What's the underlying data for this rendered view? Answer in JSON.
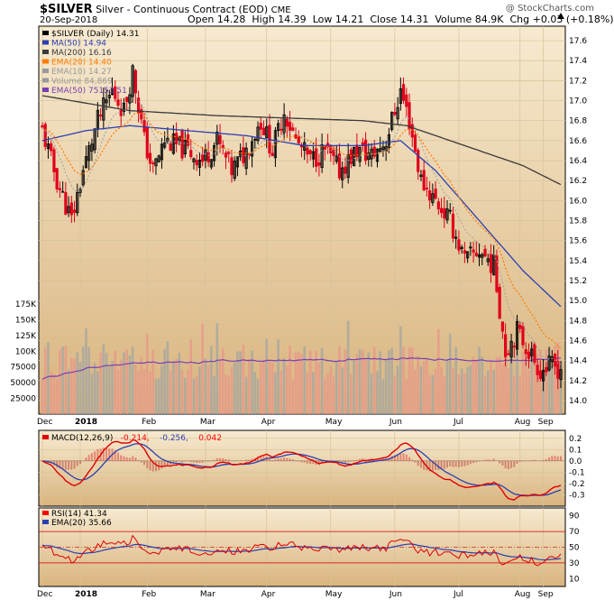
{
  "header": {
    "symbol": "$SILVER",
    "name": "Silver - Continuous Contract (EOD)",
    "exchange": "CME",
    "watermark": "@ StockCharts.com",
    "date": "20-Sep-2018",
    "open_label": "Open",
    "open": "14.28",
    "high_label": "High",
    "high": "14.39",
    "low_label": "Low",
    "low": "14.21",
    "close_label": "Close",
    "close": "14.31",
    "volume_label": "Volume",
    "volume": "84.9K",
    "chg_label": "Chg",
    "chg": "+0.03 (+0.18%)"
  },
  "chart_data": [
    {
      "type": "candlestick",
      "panel": "price",
      "ylim": [
        13.9,
        17.7
      ],
      "ytick_labels": [
        "14.0",
        "14.2",
        "14.4",
        "14.6",
        "14.8",
        "15.0",
        "15.2",
        "15.4",
        "15.6",
        "15.8",
        "16.0",
        "16.2",
        "16.4",
        "16.6",
        "16.8",
        "17.0",
        "17.2",
        "17.4",
        "17.6"
      ],
      "x_labels": [
        "Dec",
        "2018",
        "Feb",
        "Mar",
        "Apr",
        "May",
        "Jun",
        "Jul",
        "Aug",
        "Sep"
      ],
      "legend": [
        {
          "label": "$SILVER (Daily) 14.31",
          "color": "#000000"
        },
        {
          "label": "MA(50) 14.94",
          "color": "#2b3fb0"
        },
        {
          "label": "MA(200) 16.16",
          "color": "#3a3a3a"
        },
        {
          "label": "EMA(20) 14.40",
          "color": "#ff7a00"
        },
        {
          "label": "EMA(10) 14.27",
          "color": "#999999"
        },
        {
          "label": "Volume 84,869",
          "color": "#999999"
        },
        {
          "label": "EMA(50) 75153.51",
          "color": "#7a3fb0"
        }
      ],
      "series_keypoints": {
        "close_anchors": [
          [
            0,
            16.7
          ],
          [
            5,
            16.2
          ],
          [
            10,
            15.8
          ],
          [
            14,
            16.3
          ],
          [
            19,
            16.8
          ],
          [
            24,
            17.1
          ],
          [
            28,
            16.9
          ],
          [
            31,
            17.3
          ],
          [
            35,
            16.6
          ],
          [
            38,
            16.3
          ],
          [
            42,
            16.6
          ],
          [
            46,
            16.55
          ],
          [
            50,
            16.5
          ],
          [
            55,
            16.4
          ],
          [
            60,
            16.6
          ],
          [
            65,
            16.3
          ],
          [
            70,
            16.5
          ],
          [
            75,
            16.8
          ],
          [
            79,
            16.5
          ],
          [
            83,
            16.9
          ],
          [
            87,
            16.6
          ],
          [
            92,
            16.4
          ],
          [
            97,
            16.5
          ],
          [
            102,
            16.3
          ],
          [
            108,
            16.5
          ],
          [
            113,
            16.45
          ],
          [
            118,
            16.6
          ],
          [
            123,
            17.1
          ],
          [
            126,
            16.8
          ],
          [
            130,
            16.2
          ],
          [
            135,
            16.0
          ],
          [
            140,
            15.8
          ],
          [
            145,
            15.4
          ],
          [
            150,
            15.5
          ],
          [
            155,
            15.35
          ],
          [
            159,
            14.5
          ],
          [
            163,
            14.7
          ],
          [
            167,
            14.5
          ],
          [
            171,
            14.3
          ],
          [
            175,
            14.35
          ],
          [
            178,
            14.31
          ]
        ],
        "ma50_anchors": [
          [
            0,
            16.6
          ],
          [
            15,
            16.7
          ],
          [
            30,
            16.75
          ],
          [
            50,
            16.7
          ],
          [
            70,
            16.65
          ],
          [
            90,
            16.55
          ],
          [
            110,
            16.55
          ],
          [
            123,
            16.6
          ],
          [
            135,
            16.3
          ],
          [
            150,
            15.8
          ],
          [
            165,
            15.3
          ],
          [
            178,
            14.94
          ]
        ],
        "ma200_anchors": [
          [
            0,
            17.05
          ],
          [
            30,
            16.9
          ],
          [
            60,
            16.85
          ],
          [
            90,
            16.82
          ],
          [
            110,
            16.8
          ],
          [
            125,
            16.75
          ],
          [
            145,
            16.55
          ],
          [
            165,
            16.35
          ],
          [
            178,
            16.16
          ]
        ],
        "last_close": 14.31
      }
    },
    {
      "type": "bar",
      "panel": "volume",
      "ytick_labels": [
        "25000",
        "50000",
        "75000",
        "100K",
        "125K",
        "150K",
        "175K"
      ],
      "ylim": [
        0,
        185000
      ],
      "last_value": 84869,
      "ema50_last": 75153.51
    },
    {
      "type": "line",
      "panel": "macd",
      "legend": [
        {
          "label": "MACD(12,26,9)",
          "color": "#000000"
        },
        {
          "label": "-0.214,",
          "color": "#ff0000"
        },
        {
          "label": "-0.256,",
          "color": "#2b3fb0"
        },
        {
          "label": "0.042",
          "color": "#ff0000"
        }
      ],
      "ylim": [
        -0.4,
        0.27
      ],
      "ytick_labels": [
        "0.2",
        "0.1",
        "0.0",
        "-0.1",
        "-0.2",
        "-0.3"
      ],
      "macd_last": -0.214,
      "signal_last": -0.256,
      "histogram_last": 0.042
    },
    {
      "type": "line",
      "panel": "rsi",
      "legend": [
        {
          "label": "RSI(14) 41.34",
          "color": "#ff0000"
        },
        {
          "label": "EMA(20) 35.66",
          "color": "#2b3fb0"
        }
      ],
      "ylim": [
        0,
        100
      ],
      "ytick_labels": [
        "90",
        "70",
        "50",
        "30",
        "10"
      ],
      "rsi_last": 41.34,
      "ema_last": 35.66,
      "levels": [
        70,
        50,
        30
      ]
    }
  ],
  "colors": {
    "panel_bg_top": "#f6e6c8",
    "panel_bg_bottom": "#dcb882",
    "up_candle": "#000000",
    "down_candle": "#e0001b",
    "grid": "#d9c9a6"
  }
}
